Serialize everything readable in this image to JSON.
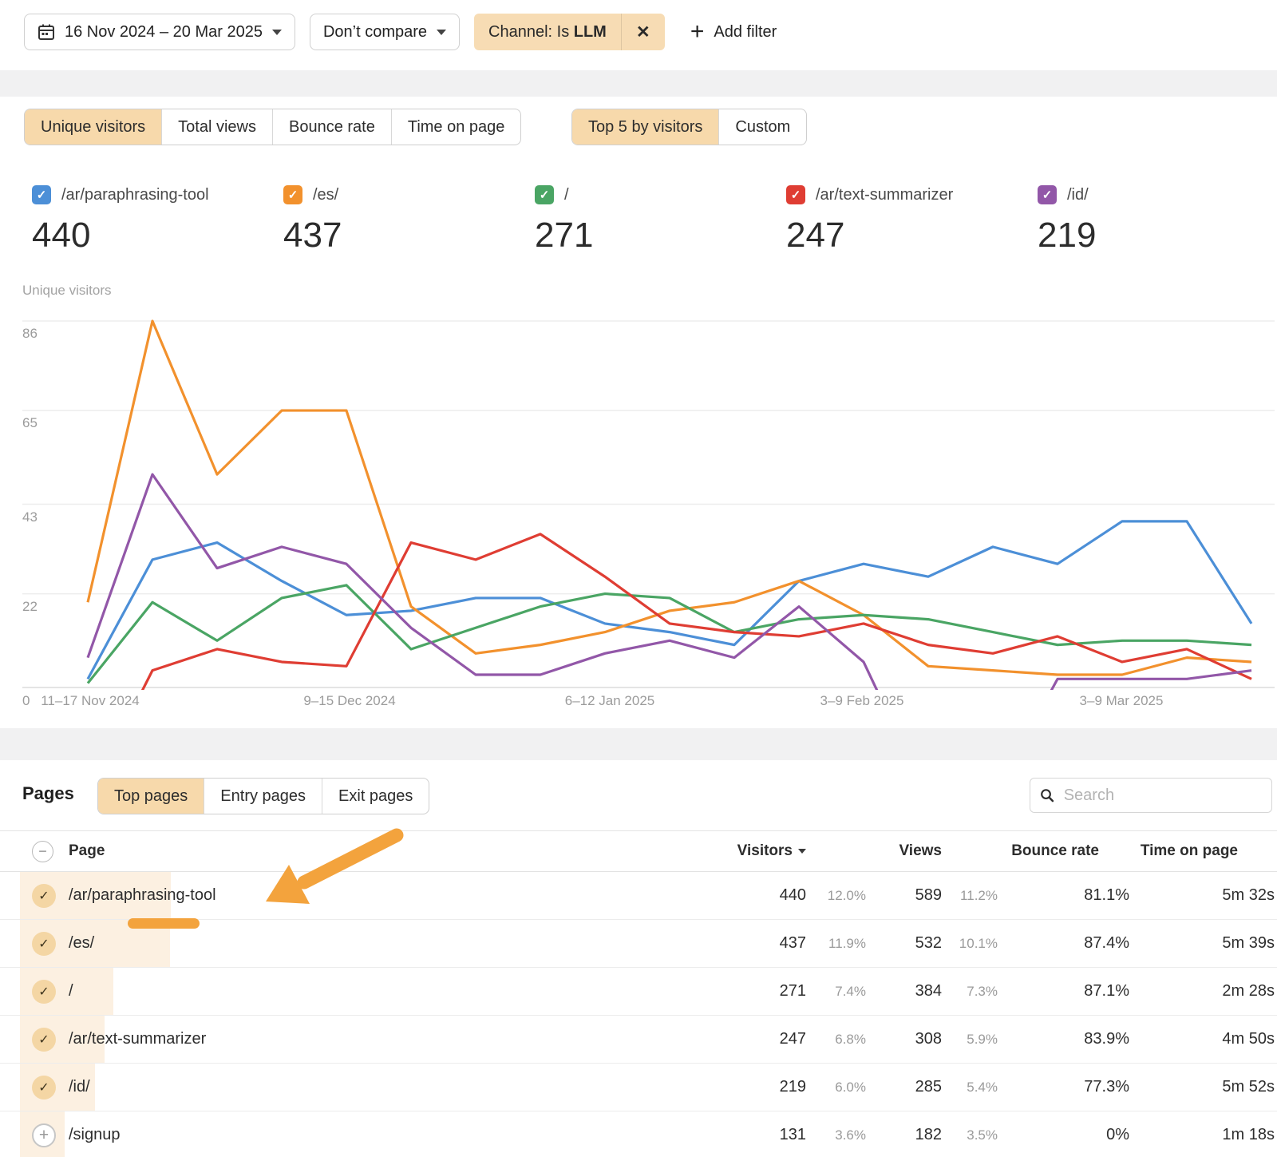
{
  "filter_bar": {
    "date_range": "16 Nov 2024 – 20 Mar 2025",
    "compare_label": "Don’t compare",
    "filter_chip": {
      "prefix": "Channel: Is",
      "value": "LLM",
      "close_glyph": "✕"
    },
    "add_filter_label": "Add filter",
    "add_filter_glyph": "+"
  },
  "metric_tabs": [
    {
      "label": "Unique visitors",
      "selected": true
    },
    {
      "label": "Total views",
      "selected": false
    },
    {
      "label": "Bounce rate",
      "selected": false
    },
    {
      "label": "Time on page",
      "selected": false
    }
  ],
  "view_tabs": [
    {
      "label": "Top 5 by visitors",
      "selected": true
    },
    {
      "label": "Custom",
      "selected": false
    }
  ],
  "legend": {
    "check_glyph": "✓",
    "items": [
      {
        "label": "/ar/paraphrasing-tool",
        "value": "440",
        "color": "#4c8fd7"
      },
      {
        "label": "/es/",
        "value": "437",
        "color": "#f2912d"
      },
      {
        "label": "/",
        "value": "271",
        "color": "#4aa564"
      },
      {
        "label": "/ar/text-summarizer",
        "value": "247",
        "color": "#df3d33"
      },
      {
        "label": "/id/",
        "value": "219",
        "color": "#9257a8"
      }
    ]
  },
  "chart": {
    "axis_title": "Unique visitors",
    "y_ticks": [
      86,
      65,
      43,
      22
    ],
    "zero_label": "0",
    "x_tick_labels": [
      "11–17 Nov 2024",
      "9–15 Dec 2024",
      "6–12 Jan 2025",
      "3–9 Feb 2025",
      "3–9 Mar 2025"
    ]
  },
  "chart_data": {
    "type": "line",
    "n_points": 19,
    "x_unit": "week",
    "x_tick_labels": [
      "11–17 Nov 2024",
      "9–15 Dec 2024",
      "6–12 Jan 2025",
      "3–9 Feb 2025",
      "3–9 Mar 2025"
    ],
    "x_tick_point_indexes": [
      0,
      4,
      8,
      12,
      16
    ],
    "ylabel": "Unique visitors",
    "ylim": [
      0,
      90
    ],
    "grid": true,
    "legend_position": "top",
    "series": [
      {
        "name": "/ar/paraphrasing-tool",
        "color": "#4c8fd7",
        "total": 440,
        "values": [
          2,
          30,
          34,
          25,
          17,
          18,
          21,
          21,
          15,
          13,
          10,
          25,
          29,
          26,
          33,
          29,
          39,
          39,
          15
        ]
      },
      {
        "name": "/es/",
        "color": "#f2912d",
        "total": 437,
        "values": [
          20,
          86,
          50,
          65,
          65,
          19,
          8,
          10,
          13,
          18,
          20,
          25,
          17,
          5,
          4,
          3,
          3,
          7,
          6
        ]
      },
      {
        "name": "/",
        "color": "#4aa564",
        "total": 271,
        "values": [
          1,
          20,
          11,
          21,
          24,
          9,
          14,
          19,
          22,
          21,
          13,
          16,
          17,
          16,
          13,
          10,
          11,
          11,
          10
        ]
      },
      {
        "name": "/ar/text-summarizer",
        "color": "#df3d33",
        "total": 247,
        "values": [
          0,
          4,
          9,
          6,
          5,
          34,
          30,
          36,
          26,
          15,
          13,
          12,
          15,
          10,
          8,
          12,
          6,
          9,
          2
        ]
      },
      {
        "name": "/id/",
        "color": "#9257a8",
        "total": 219,
        "values": [
          7,
          50,
          28,
          33,
          29,
          14,
          3,
          3,
          8,
          11,
          7,
          19,
          6,
          0,
          0,
          2,
          2,
          2,
          4
        ]
      }
    ]
  },
  "pages": {
    "title": "Pages",
    "tabs": [
      {
        "label": "Top pages",
        "selected": true
      },
      {
        "label": "Entry pages",
        "selected": false
      },
      {
        "label": "Exit pages",
        "selected": false
      }
    ],
    "search_placeholder": "Search"
  },
  "table": {
    "columns": [
      "Page",
      "Visitors",
      "Views",
      "Bounce rate",
      "Time on page"
    ],
    "sort_column": "Visitors",
    "sort_direction": "desc",
    "check_glyph": "✓",
    "plus_glyph": "+",
    "minus_glyph": "−",
    "rows": [
      {
        "page": "/ar/paraphrasing-tool",
        "visitors": "440",
        "visitors_pct": "12.0%",
        "views": "589",
        "views_pct": "11.2%",
        "bounce_rate": "81.1%",
        "time_on_page": "5m 32s",
        "checked": true
      },
      {
        "page": "/es/",
        "visitors": "437",
        "visitors_pct": "11.9%",
        "views": "532",
        "views_pct": "10.1%",
        "bounce_rate": "87.4%",
        "time_on_page": "5m 39s",
        "checked": true
      },
      {
        "page": "/",
        "visitors": "271",
        "visitors_pct": "7.4%",
        "views": "384",
        "views_pct": "7.3%",
        "bounce_rate": "87.1%",
        "time_on_page": "2m 28s",
        "checked": true
      },
      {
        "page": "/ar/text-summarizer",
        "visitors": "247",
        "visitors_pct": "6.8%",
        "views": "308",
        "views_pct": "5.9%",
        "bounce_rate": "83.9%",
        "time_on_page": "4m 50s",
        "checked": true
      },
      {
        "page": "/id/",
        "visitors": "219",
        "visitors_pct": "6.0%",
        "views": "285",
        "views_pct": "5.4%",
        "bounce_rate": "77.3%",
        "time_on_page": "5m 52s",
        "checked": true
      },
      {
        "page": "/signup",
        "visitors": "131",
        "visitors_pct": "3.6%",
        "views": "182",
        "views_pct": "3.5%",
        "bounce_rate": "0%",
        "time_on_page": "1m 18s",
        "checked": false
      }
    ]
  },
  "annotation": {
    "color": "#f3a33d",
    "description": "hand-drawn arrow pointing to /ar/paraphrasing-tool row with underline"
  }
}
